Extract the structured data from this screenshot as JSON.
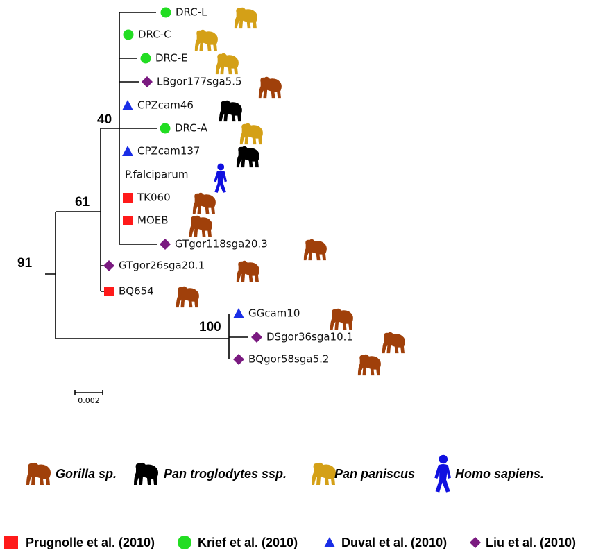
{
  "tree": {
    "leaves": [
      {
        "label": "DRC-L"
      },
      {
        "label": "DRC-C"
      },
      {
        "label": "DRC-E"
      },
      {
        "label": "LBgor177sga5.5"
      },
      {
        "label": "CPZcam46"
      },
      {
        "label": "DRC-A"
      },
      {
        "label": "CPZcam137"
      },
      {
        "label": "P.falciparum"
      },
      {
        "label": "TK060"
      },
      {
        "label": "MOEB"
      },
      {
        "label": "GTgor118sga20.3"
      },
      {
        "label": "GTgor26sga20.1"
      },
      {
        "label": "BQ654"
      },
      {
        "label": "GGcam10"
      },
      {
        "label": "DSgor36sga10.1"
      },
      {
        "label": "BQgor58sga5.2"
      }
    ],
    "bootstrap": [
      "91",
      "61",
      "40",
      "100"
    ],
    "scale_label": "0.002"
  },
  "host_legend": [
    "Gorilla sp.",
    "Pan troglodytes ssp.",
    "Pan paniscus",
    "Homo sapiens."
  ],
  "reference_legend": [
    "Prugnolle et al. (2010)",
    "Krief  et al. (2010)",
    "Duval  et al. (2010)",
    "Liu  et al. (2010)"
  ]
}
